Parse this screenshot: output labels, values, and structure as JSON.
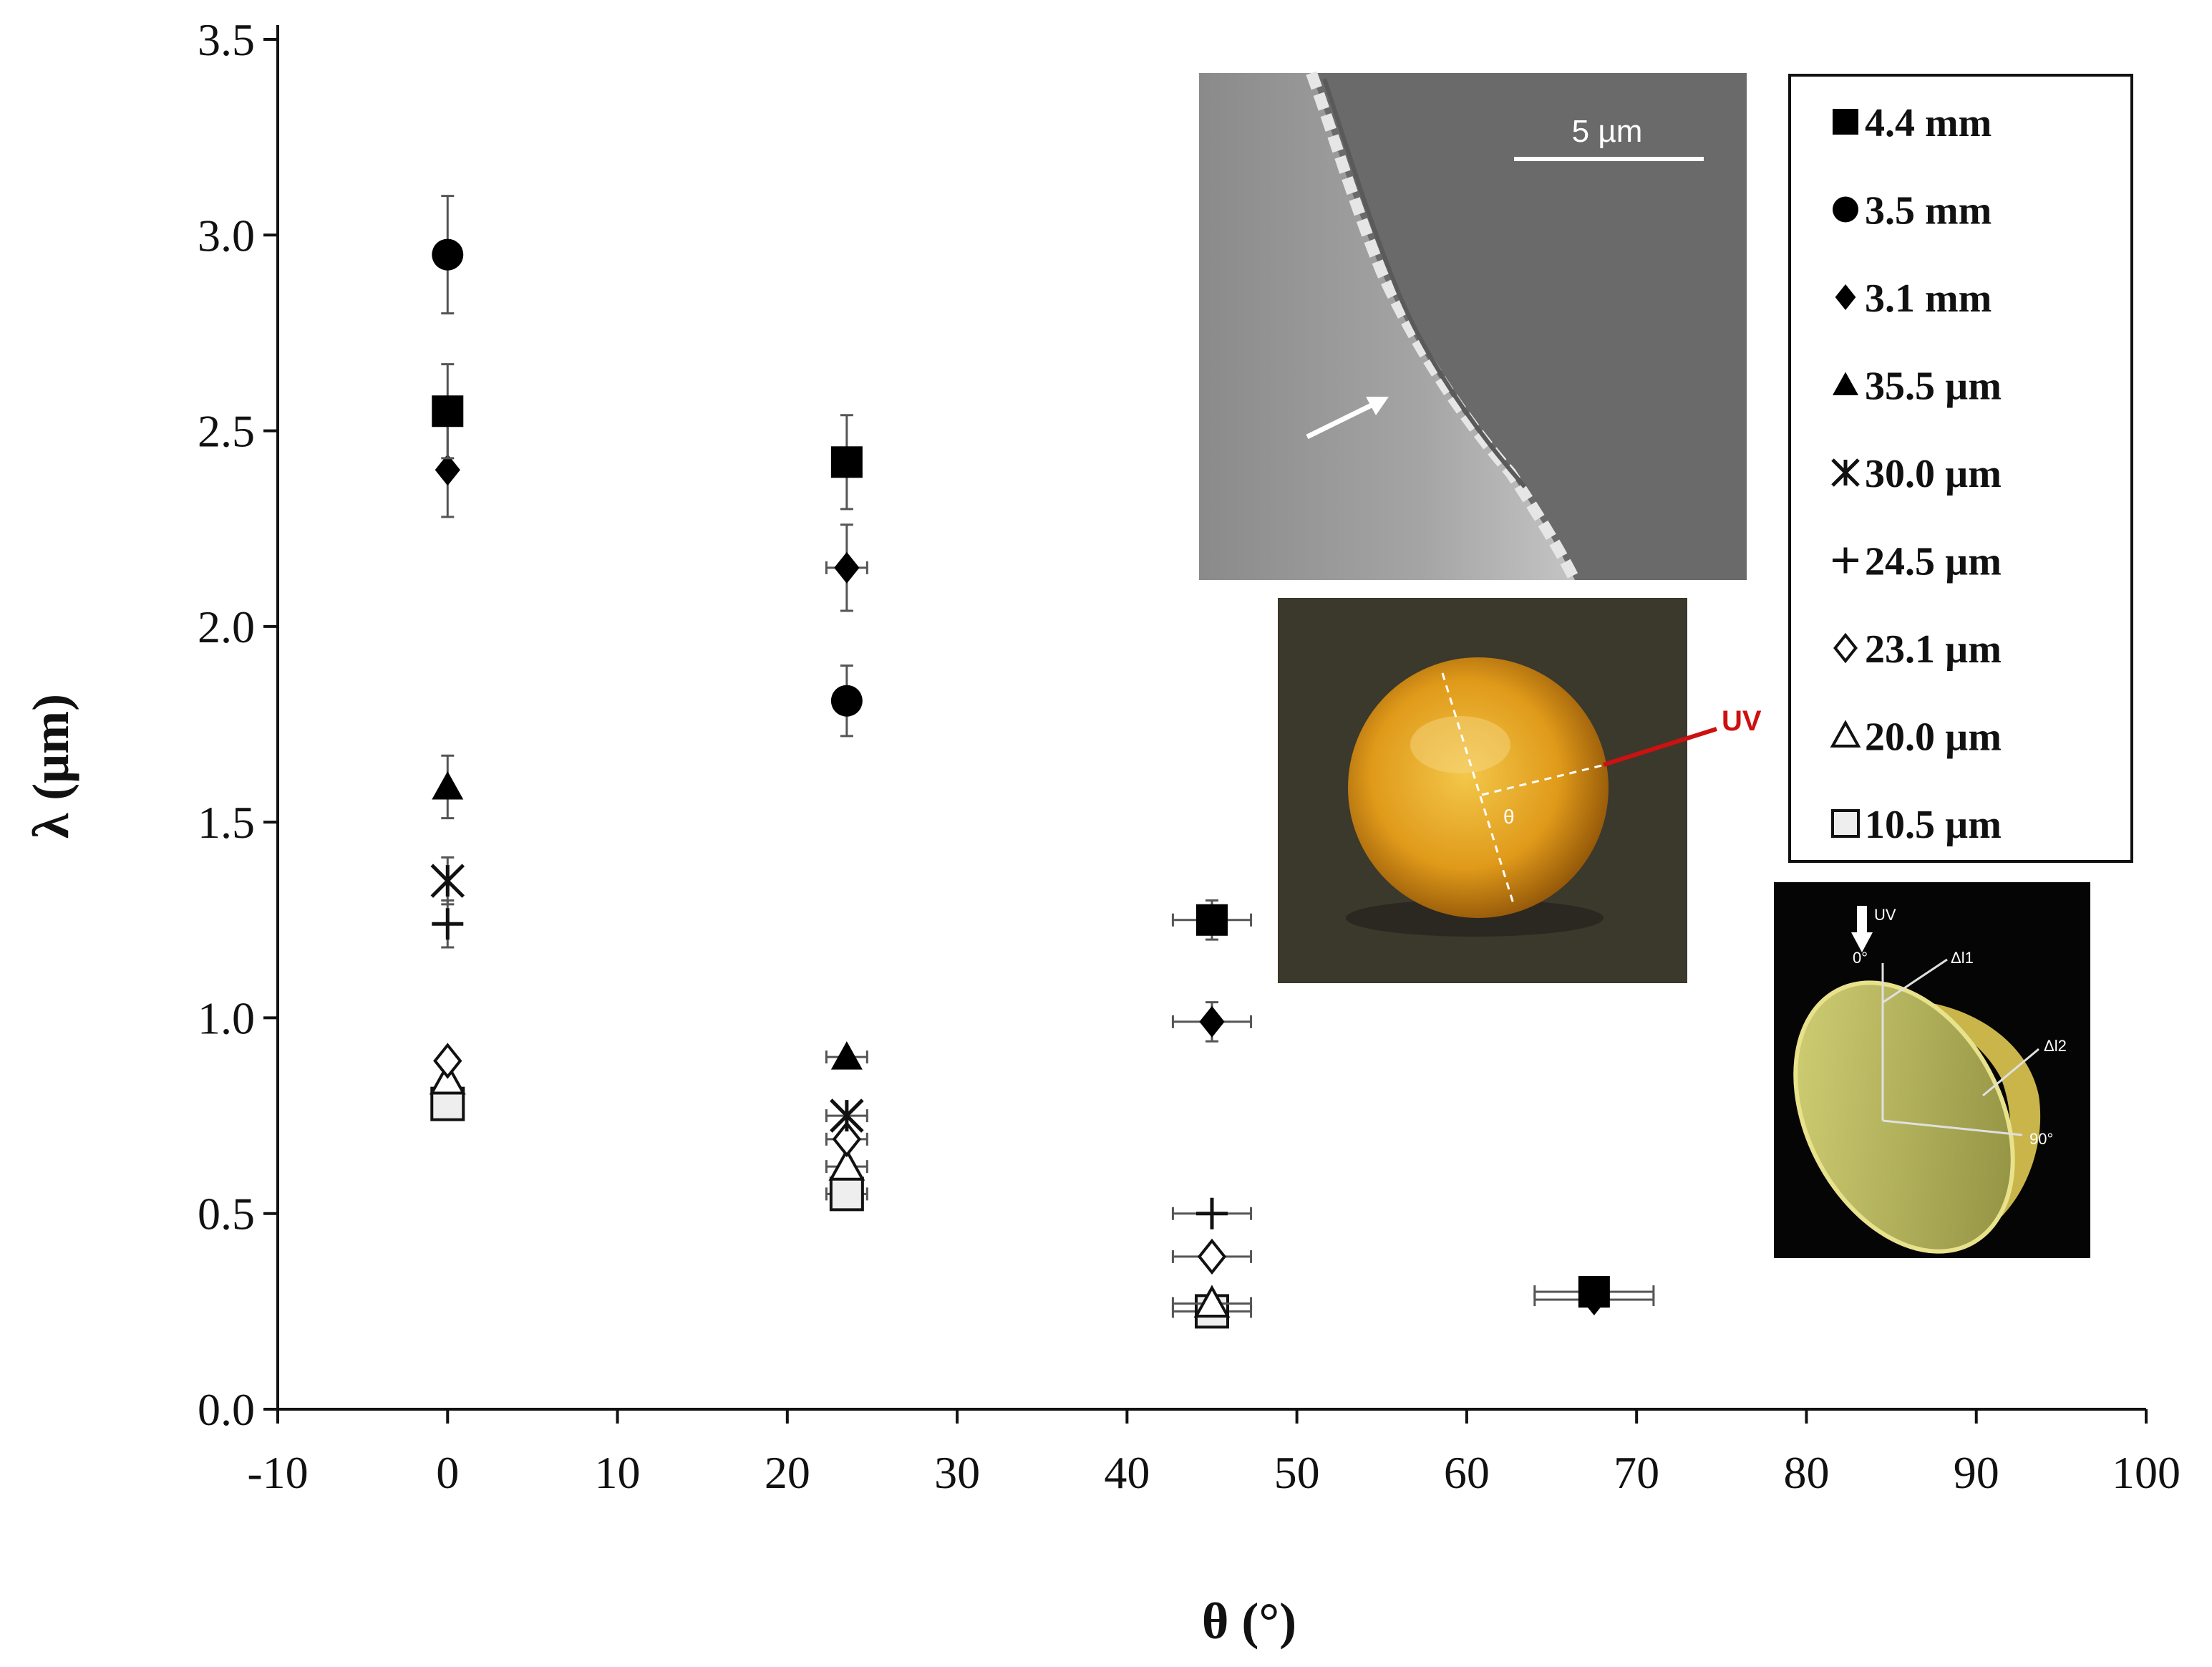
{
  "chart_data": {
    "type": "scatter",
    "xlabel": "θ (°)",
    "ylabel": "λ (μm)",
    "xlim": [
      -10,
      100
    ],
    "ylim": [
      0,
      3.5
    ],
    "xticks": [
      "-10",
      "0",
      "10",
      "20",
      "30",
      "40",
      "50",
      "60",
      "70",
      "80",
      "90",
      "100"
    ],
    "yticks": [
      "0.0",
      "0.5",
      "1.0",
      "1.5",
      "2.0",
      "2.5",
      "3.0",
      "3.5"
    ],
    "grid": false,
    "legend_position": "top-right",
    "series": [
      {
        "name": "4.4 mm",
        "marker": "square-filled",
        "points": [
          {
            "x": 0,
            "y": 2.55,
            "yerr": 0.12
          },
          {
            "x": 23.5,
            "y": 2.42,
            "yerr": 0.12
          },
          {
            "x": 45,
            "y": 1.25,
            "yerr": 0.05,
            "xerr": 2.3
          },
          {
            "x": 67.5,
            "y": 0.3,
            "xerr": 3.5
          }
        ]
      },
      {
        "name": "3.5 mm",
        "marker": "circle-filled",
        "points": [
          {
            "x": 0,
            "y": 2.95,
            "yerr": 0.15
          },
          {
            "x": 23.5,
            "y": 1.81,
            "yerr": 0.09
          }
        ]
      },
      {
        "name": "3.1 mm",
        "marker": "diamond-filled",
        "points": [
          {
            "x": 0,
            "y": 2.4,
            "yerr": 0.12
          },
          {
            "x": 23.5,
            "y": 2.15,
            "yerr": 0.11,
            "xerr": 1.2
          },
          {
            "x": 45,
            "y": 0.99,
            "yerr": 0.05,
            "xerr": 2.3
          },
          {
            "x": 67.5,
            "y": 0.28,
            "xerr": 3.5
          }
        ]
      },
      {
        "name": "35.5 µm",
        "marker": "triangle-filled",
        "points": [
          {
            "x": 0,
            "y": 1.59,
            "yerr": 0.08
          },
          {
            "x": 23.5,
            "y": 0.9,
            "xerr": 1.2
          }
        ]
      },
      {
        "name": "30.0 µm",
        "marker": "asterisk",
        "points": [
          {
            "x": 0,
            "y": 1.35,
            "yerr": 0.06
          },
          {
            "x": 23.5,
            "y": 0.75,
            "xerr": 1.2
          }
        ]
      },
      {
        "name": "24.5 µm",
        "marker": "plus",
        "points": [
          {
            "x": 0,
            "y": 1.24,
            "yerr": 0.06
          },
          {
            "x": 45,
            "y": 0.5,
            "xerr": 2.3
          }
        ]
      },
      {
        "name": "23.1 µm",
        "marker": "diamond-open",
        "points": [
          {
            "x": 0,
            "y": 0.89
          },
          {
            "x": 23.5,
            "y": 0.69,
            "xerr": 1.2
          },
          {
            "x": 45,
            "y": 0.39,
            "xerr": 2.3
          }
        ]
      },
      {
        "name": "20.0 µm",
        "marker": "triangle-open",
        "points": [
          {
            "x": 0,
            "y": 0.84
          },
          {
            "x": 23.5,
            "y": 0.62,
            "xerr": 1.2
          },
          {
            "x": 45,
            "y": 0.27,
            "xerr": 2.3
          }
        ]
      },
      {
        "name": "10.5 µm",
        "marker": "square-open",
        "points": [
          {
            "x": 0,
            "y": 0.78
          },
          {
            "x": 23.5,
            "y": 0.55,
            "xerr": 1.2
          },
          {
            "x": 45,
            "y": 0.25,
            "xerr": 2.3
          }
        ]
      }
    ],
    "insets": {
      "sem_scale_label": "5 µm",
      "photo_label": "UV",
      "photo_angle_label": "θ",
      "diagram_labels": {
        "beam": "UV",
        "top": "0°",
        "d1": "Δl1",
        "d2": "Δl2",
        "side": "90°"
      }
    }
  }
}
